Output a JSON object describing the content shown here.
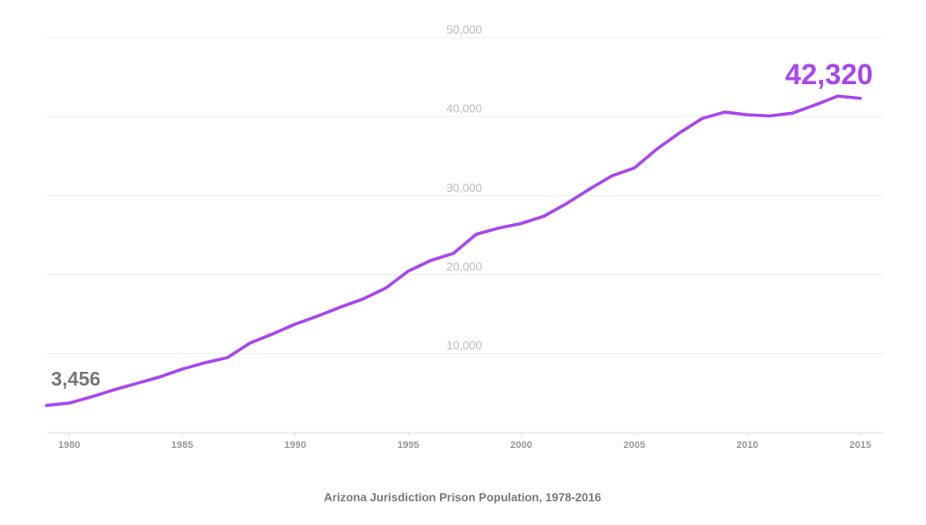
{
  "chart_data": {
    "type": "line",
    "title": "Arizona Jurisdiction Prison Population, 1978-2016",
    "x": [
      1979,
      1980,
      1981,
      1982,
      1983,
      1984,
      1985,
      1986,
      1987,
      1988,
      1989,
      1990,
      1991,
      1992,
      1993,
      1994,
      1995,
      1996,
      1997,
      1998,
      1999,
      2000,
      2001,
      2002,
      2003,
      2004,
      2005,
      2006,
      2007,
      2008,
      2009,
      2010,
      2011,
      2012,
      2013,
      2014,
      2015
    ],
    "series": [
      {
        "name": "Prison population",
        "color": "#a846ef",
        "values": [
          3456,
          3750,
          4550,
          5450,
          6250,
          7050,
          8050,
          8850,
          9500,
          11350,
          12500,
          13750,
          14770,
          15900,
          16930,
          18300,
          20450,
          21800,
          22700,
          25100,
          25900,
          26480,
          27400,
          29000,
          30800,
          32500,
          33500,
          35900,
          37950,
          39770,
          40570,
          40230,
          40100,
          40450,
          41480,
          42600,
          42320
        ],
        "value_labels": [
          "3,456",
          null,
          null,
          null,
          null,
          null,
          null,
          null,
          null,
          null,
          null,
          null,
          null,
          null,
          null,
          null,
          null,
          null,
          null,
          null,
          null,
          null,
          null,
          null,
          null,
          null,
          null,
          null,
          null,
          null,
          null,
          null,
          null,
          null,
          null,
          null,
          "42,320"
        ]
      }
    ],
    "xlim": [
      1979,
      2016
    ],
    "xticks": [
      1980,
      1985,
      1990,
      1995,
      2000,
      2005,
      2010,
      2015
    ],
    "ylim": [
      0,
      50000
    ],
    "yticks": [
      {
        "value": 10000,
        "label": "10,000"
      },
      {
        "value": 20000,
        "label": "20,000"
      },
      {
        "value": 30000,
        "label": "30,000"
      },
      {
        "value": 40000,
        "label": "40,000"
      },
      {
        "value": 50000,
        "label": "50,000"
      }
    ],
    "grid": true
  }
}
